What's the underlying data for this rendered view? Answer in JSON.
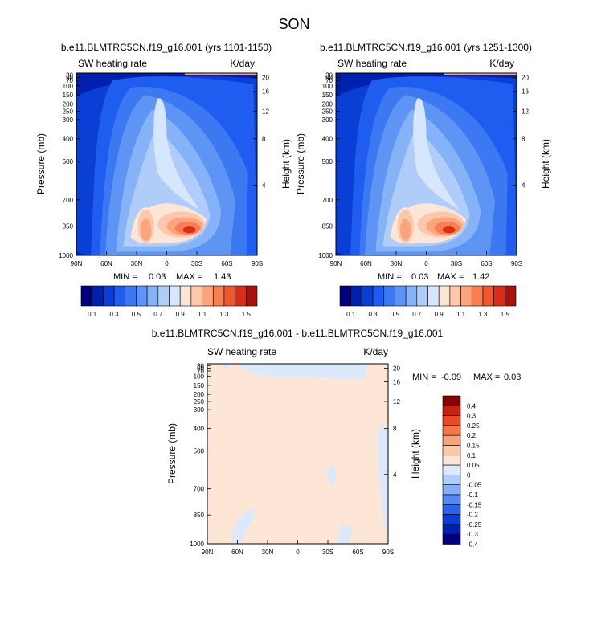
{
  "figure_title": "SON",
  "colors": {
    "panel_palette": [
      "#00007c",
      "#0021b0",
      "#0a3fd6",
      "#1f5cf0",
      "#3c78f2",
      "#5e95f5",
      "#86b2f7",
      "#b0cdfa",
      "#d6e6fc",
      "#fde6d6",
      "#fcc7aa",
      "#fba57f",
      "#f97f52",
      "#f2562e",
      "#d92d17",
      "#a8140c",
      "#7c0000"
    ],
    "diff_palette": [
      "#00007c",
      "#0021b0",
      "#0a3fd6",
      "#2a63f1",
      "#5489f4",
      "#86adf6",
      "#b4ccf9",
      "#dce8fc",
      "#fde6d6",
      "#fcc8a9",
      "#fba27b",
      "#f7774a",
      "#e94b24",
      "#c2220e",
      "#8c0000"
    ]
  },
  "chart_data": [
    {
      "type": "heatmap",
      "title": "b.e11.BLMTRC5CN.f19_g16.001 (yrs 1101-1150)",
      "subtitle_left": "SW heating rate",
      "subtitle_right": "K/day",
      "xlabel": "",
      "ylabel": "Pressure (mb)",
      "ylabel_right": "Height (km)",
      "x_ticks": [
        "90N",
        "60N",
        "30N",
        "0",
        "30S",
        "60S",
        "90S"
      ],
      "y_ticks": [
        "30",
        "50",
        "70",
        "100",
        "150",
        "200",
        "250",
        "300",
        "400",
        "500",
        "700",
        "850",
        "1000"
      ],
      "y_ticks_right": [
        "20",
        "16",
        "12",
        "8",
        "4"
      ],
      "stats": {
        "min_label": "MIN =",
        "min": "0.03",
        "max_label": "MAX =",
        "max": "1.43"
      },
      "peak_value": 1.43
    },
    {
      "type": "heatmap",
      "title": "b.e11.BLMTRC5CN.f19_g16.001 (yrs 1251-1300)",
      "subtitle_left": "SW heating rate",
      "subtitle_right": "K/day",
      "xlabel": "",
      "ylabel": "Pressure (mb)",
      "ylabel_right": "Height (km)",
      "x_ticks": [
        "90N",
        "60N",
        "30N",
        "0",
        "30S",
        "60S",
        "90S"
      ],
      "y_ticks": [
        "30",
        "50",
        "70",
        "100",
        "150",
        "200",
        "250",
        "300",
        "400",
        "500",
        "700",
        "850",
        "1000"
      ],
      "y_ticks_right": [
        "20",
        "16",
        "12",
        "8",
        "4"
      ],
      "stats": {
        "min_label": "MIN =",
        "min": "0.03",
        "max_label": "MAX =",
        "max": "1.42"
      },
      "peak_value": 1.42
    },
    {
      "type": "heatmap",
      "title": "b.e11.BLMTRC5CN.f19_g16.001 - b.e11.BLMTRC5CN.f19_g16.001",
      "subtitle_left": "SW heating rate",
      "subtitle_right": "K/day",
      "xlabel": "",
      "ylabel": "Pressure (mb)",
      "ylabel_right": "Height (km)",
      "x_ticks": [
        "90N",
        "60N",
        "30N",
        "0",
        "30S",
        "60S",
        "90S"
      ],
      "y_ticks": [
        "30",
        "50",
        "70",
        "100",
        "150",
        "200",
        "250",
        "300",
        "400",
        "500",
        "700",
        "850",
        "1000"
      ],
      "y_ticks_right": [
        "20",
        "16",
        "12",
        "8",
        "4"
      ],
      "stats": {
        "min_label": "MIN =",
        "min": "-0.09",
        "max_label": "MAX =",
        "max": "0.03"
      },
      "field_value": 0.0,
      "negative_patch_value": -0.05
    }
  ],
  "colorbars": {
    "shared": {
      "labels": [
        "0.1",
        "0.3",
        "0.5",
        "0.7",
        "0.9",
        "1.1",
        "1.3",
        "1.5"
      ],
      "levels": [
        0.1,
        0.2,
        0.3,
        0.4,
        0.5,
        0.6,
        0.7,
        0.8,
        0.9,
        1.0,
        1.1,
        1.2,
        1.3,
        1.4,
        1.5,
        1.6
      ]
    },
    "difference": {
      "labels": [
        "0.4",
        "0.3",
        "0.25",
        "0.2",
        "0.15",
        "0.1",
        "0.05",
        "0",
        "-0.05",
        "-0.1",
        "-0.15",
        "-0.2",
        "-0.25",
        "-0.3",
        "-0.4"
      ]
    }
  }
}
